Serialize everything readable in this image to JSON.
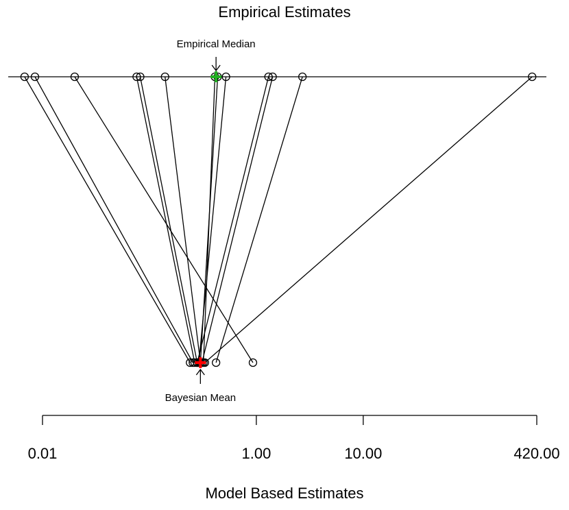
{
  "chart_data": {
    "type": "scatter",
    "title": "Empirical Estimates",
    "xlabel": "Model Based Estimates",
    "x_scale": "log",
    "x_ticks": [
      0.01,
      1.0,
      10.0,
      420.0
    ],
    "x_tick_labels": [
      "0.01",
      "1.00",
      "10.00",
      "420.00"
    ],
    "annotations": {
      "top": "Empirical Median",
      "bottom": "Bayesian Mean"
    },
    "pairs": [
      {
        "empirical": 0.0068,
        "model": 0.24
      },
      {
        "empirical": 0.0085,
        "model": 0.255
      },
      {
        "empirical": 0.02,
        "model": 0.93
      },
      {
        "empirical": 0.076,
        "model": 0.265
      },
      {
        "empirical": 0.082,
        "model": 0.28
      },
      {
        "empirical": 0.14,
        "model": 0.3
      },
      {
        "empirical": 0.41,
        "model": 0.32
      },
      {
        "empirical": 0.435,
        "model": 0.3
      },
      {
        "empirical": 0.52,
        "model": 0.29
      },
      {
        "empirical": 1.3,
        "model": 0.28
      },
      {
        "empirical": 1.42,
        "model": 0.31
      },
      {
        "empirical": 2.7,
        "model": 0.42
      },
      {
        "empirical": 380.0,
        "model": 0.33
      }
    ],
    "empirical_median": 0.42,
    "bayesian_mean": 0.3,
    "colors": {
      "empirical_median": "#22b022",
      "bayesian_mean": "#ff0000",
      "points": "#000000"
    }
  }
}
